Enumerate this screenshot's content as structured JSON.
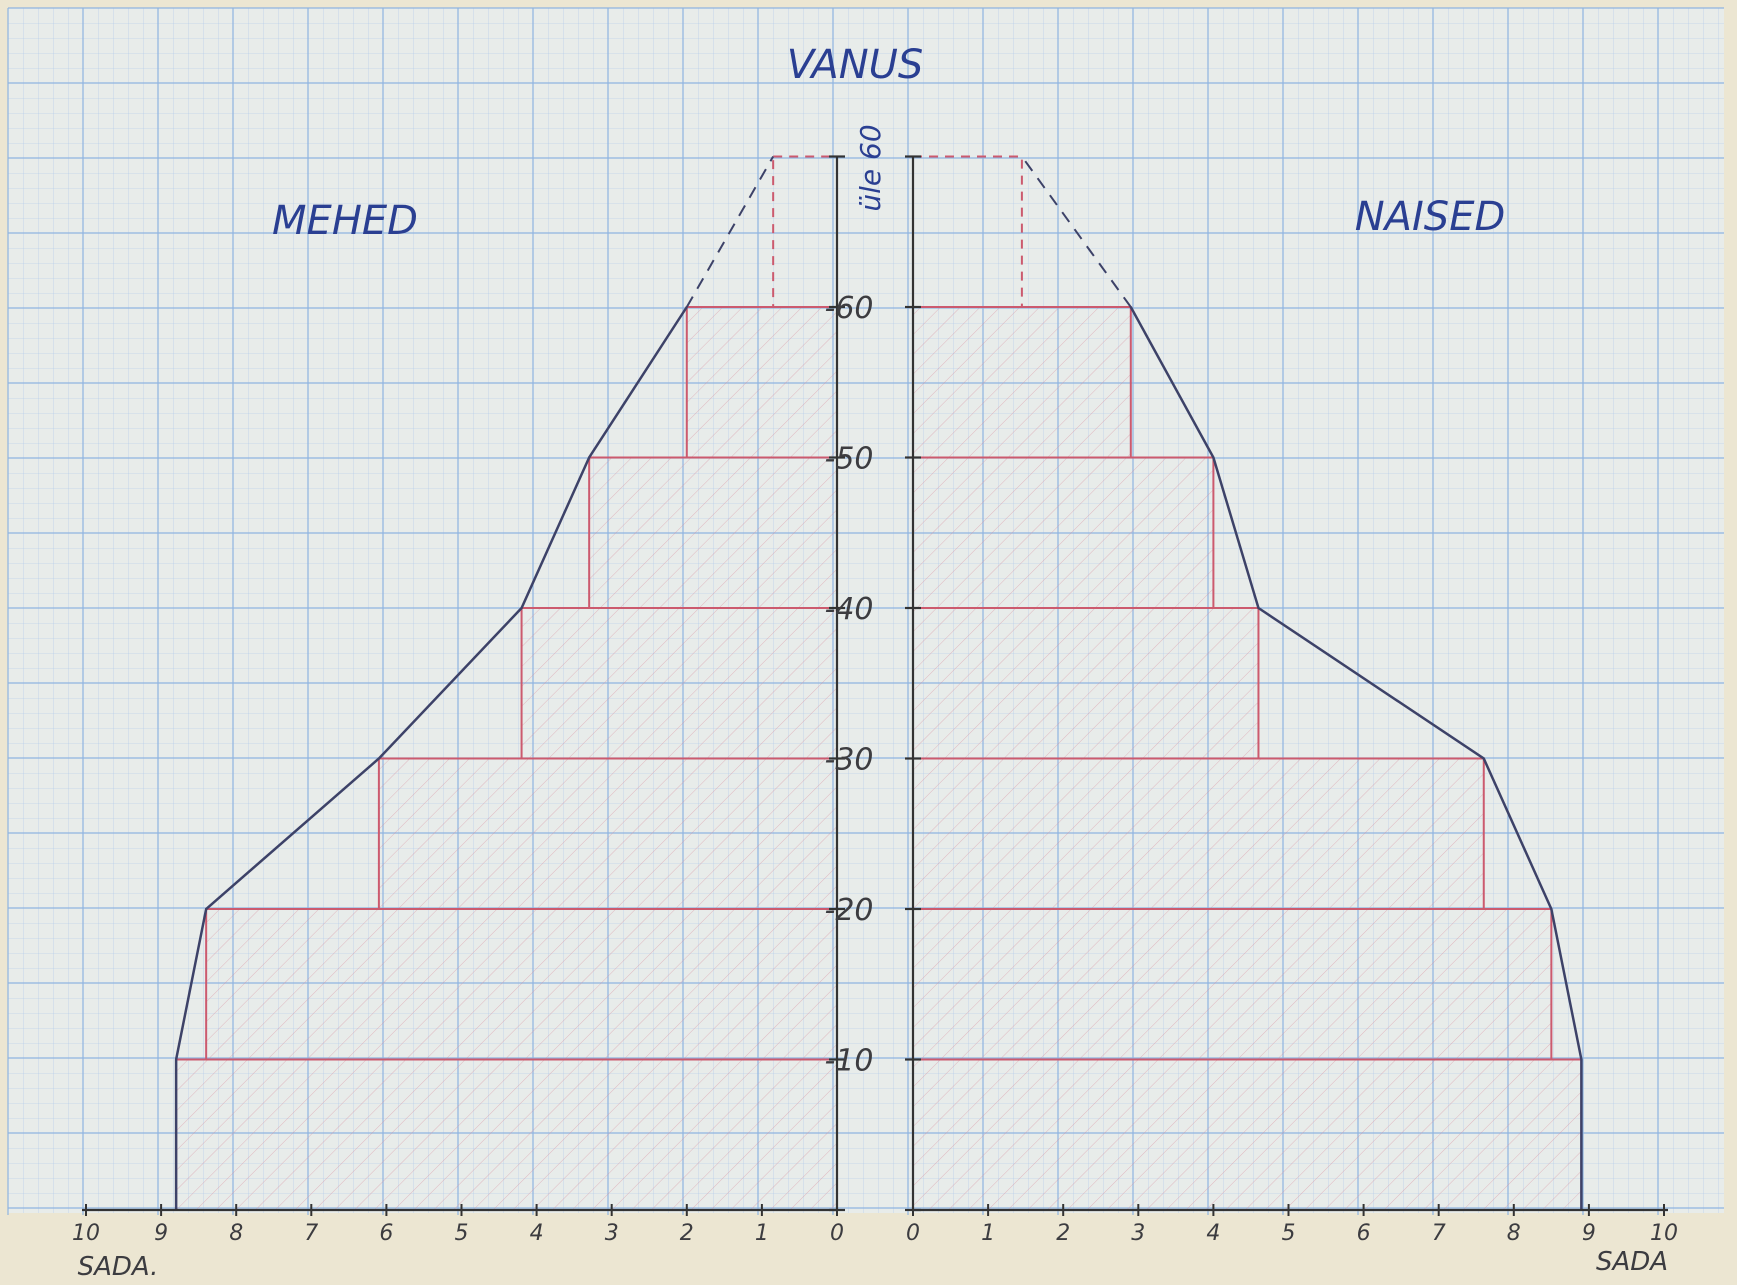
{
  "chart_data": {
    "type": "bar",
    "title": "VANUS",
    "left_label": "MEHED",
    "right_label": "NAISED",
    "x_unit_left": "SADA.",
    "x_unit_right": "SADA",
    "x_ticks_left": [
      "10",
      "9",
      "8",
      "7",
      "6",
      "5",
      "4",
      "3",
      "2",
      "1",
      "0"
    ],
    "x_ticks_right": [
      "0",
      "1",
      "2",
      "3",
      "4",
      "5",
      "6",
      "7",
      "8",
      "9",
      "10"
    ],
    "y_ticks": [
      "10",
      "20",
      "30",
      "40",
      "50",
      "60"
    ],
    "top_group_label": "üle 60",
    "xlim": [
      0,
      10
    ],
    "age_groups": [
      "0-10",
      "10-20",
      "20-30",
      "30-40",
      "40-50",
      "50-60",
      "üle 60"
    ],
    "series": [
      {
        "name": "MEHED",
        "values": [
          8.8,
          8.4,
          6.1,
          4.2,
          3.3,
          2.0,
          0.85
        ]
      },
      {
        "name": "NAISED",
        "values": [
          8.9,
          8.5,
          7.6,
          4.6,
          4.0,
          2.9,
          1.45
        ]
      }
    ],
    "colors": {
      "bar": "#cc5a6e",
      "outline": "#3d4268",
      "axis": "#333333",
      "grid": "#8fb4e0"
    }
  }
}
